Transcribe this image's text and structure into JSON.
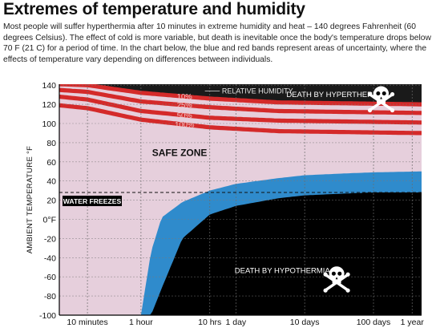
{
  "header": {
    "title": "Extremes of temperature and humidity",
    "description": "Most people will suffer hyperthermia after 10 minutes in extreme humidity and heat – 140 degrees Fahrenheit (60 degrees Celsius). The effect of cold is more variable, but death is inevitable once the body's temperature drops below 70 F (21 C) for a period of time. In the chart below, the blue and red bands represent areas of uncertainty, where the effects of temperature vary depending on differences between individuals."
  },
  "chart_data": {
    "type": "area",
    "xlabel": "",
    "ylabel": "AMBIENT TEMPERATURE °F",
    "x_scale": "log",
    "x_ticks": [
      "10 minutes",
      "1 hour",
      "10 hrs",
      "1 day",
      "10 days",
      "100 days",
      "1 year"
    ],
    "x_tick_hours": [
      0.1667,
      1,
      10,
      24,
      240,
      2400,
      8760
    ],
    "x_range_hours": [
      0.065,
      12000
    ],
    "y_ticks": [
      "140",
      "120",
      "100",
      "80",
      "60",
      "40",
      "20",
      "0°F",
      "-20",
      "-40",
      "-60",
      "-80",
      "-100"
    ],
    "ylim": [
      -100,
      141
    ],
    "grid": true,
    "zones": {
      "safe": "SAFE ZONE",
      "hyperthermia": "DEATH BY HYPERTHERMIA",
      "hypothermia": "DEATH BY HYPOTHERMIA"
    },
    "humidity_label": "RELATIVE HUMIDITY",
    "humidity_series": [
      {
        "name": "10%",
        "time_hours": [
          0.065,
          0.1667,
          1,
          10,
          100,
          12000
        ],
        "temp_f": [
          141,
          140,
          132,
          126,
          122,
          120
        ]
      },
      {
        "name": "25%",
        "time_hours": [
          0.065,
          0.1667,
          1,
          10,
          100,
          12000
        ],
        "temp_f": [
          135,
          133,
          123,
          117,
          113,
          111
        ]
      },
      {
        "name": "50%",
        "time_hours": [
          0.065,
          0.1667,
          1,
          10,
          100,
          12000
        ],
        "temp_f": [
          128,
          125,
          113,
          106,
          103,
          101
        ]
      },
      {
        "name": "100%",
        "time_hours": [
          0.065,
          0.1667,
          1,
          10,
          100,
          12000
        ],
        "temp_f": [
          119,
          116,
          104,
          96,
          92,
          90
        ]
      }
    ],
    "hypothermia_band": {
      "time_hours": [
        1,
        1.4,
        2,
        4,
        10,
        24,
        100,
        240,
        1000,
        2400,
        12000
      ],
      "upper_temp_f": [
        -100,
        -34,
        2,
        18,
        30,
        37,
        43,
        46,
        48,
        49,
        50
      ],
      "lower_temp_f": [
        -100,
        -100,
        -72,
        -20,
        5,
        14,
        22,
        25,
        27,
        28,
        28
      ]
    },
    "reference_line": {
      "label": "WATER FREEZES",
      "value_f": 28
    },
    "colors": {
      "safe": "#e6cfdc",
      "hyperthermia": "#1a1a1a",
      "red_band": "#d42a2a",
      "blue_band": "#2f8bcc",
      "hypothermia": "#000000"
    }
  }
}
